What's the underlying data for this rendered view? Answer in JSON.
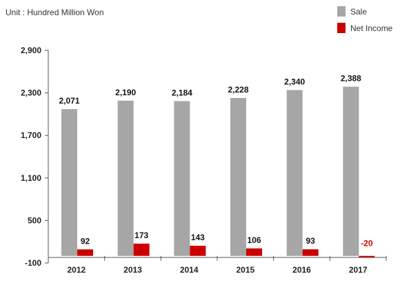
{
  "chart_data": {
    "type": "bar",
    "unit_note": "Unit : Hundred Million Won",
    "categories": [
      "2012",
      "2013",
      "2014",
      "2015",
      "2016",
      "2017"
    ],
    "series": [
      {
        "name": "Sale",
        "color": "#a6a6a6",
        "values": [
          2071,
          2190,
          2184,
          2228,
          2340,
          2388
        ],
        "labels": [
          "2,071",
          "2,190",
          "2,184",
          "2,228",
          "2,340",
          "2,388"
        ]
      },
      {
        "name": "Net Income",
        "color": "#cc0000",
        "values": [
          92,
          173,
          143,
          106,
          93,
          -20
        ],
        "labels": [
          "92",
          "173",
          "143",
          "106",
          "93",
          "-20"
        ]
      }
    ],
    "y_ticks": [
      -100,
      500,
      1100,
      1700,
      2300,
      2900
    ],
    "y_tick_labels": [
      "-100",
      "500",
      "1,100",
      "1,700",
      "2,300",
      "2,900"
    ],
    "ylim": [
      -100,
      2900
    ],
    "grid": false,
    "legend_position": "top-right",
    "negative_label_color": "#d40000"
  }
}
